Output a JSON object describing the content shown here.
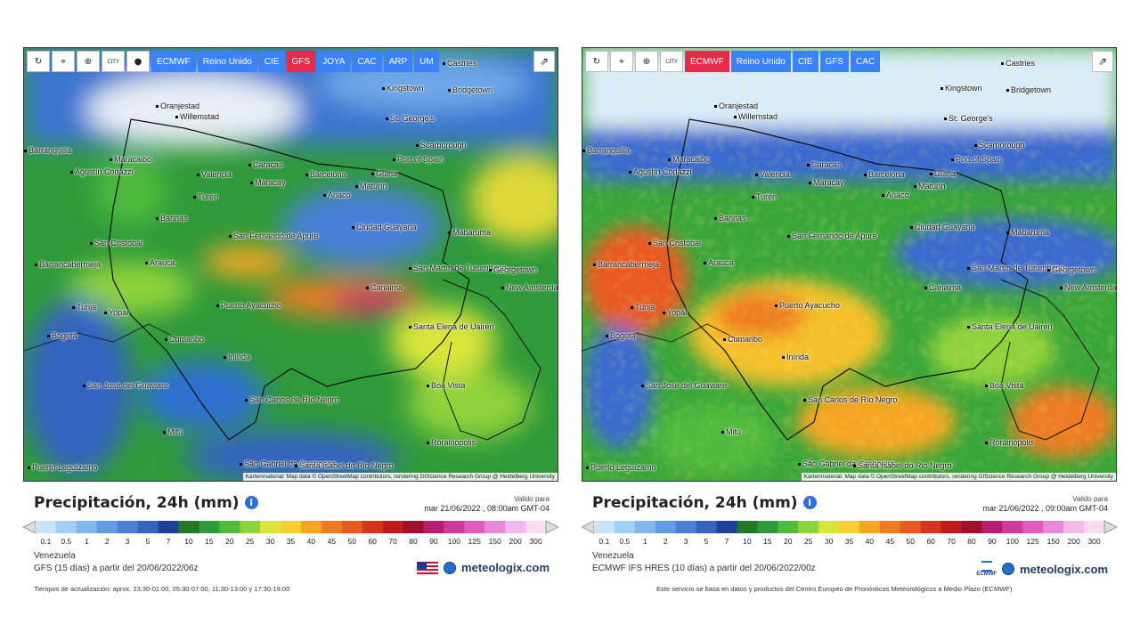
{
  "left": {
    "toolbar": {
      "tools": [
        {
          "name": "reload-icon",
          "glyph": "↻"
        },
        {
          "name": "location-icon",
          "glyph": "⌖"
        },
        {
          "name": "zoom-icon",
          "glyph": "⊕"
        },
        {
          "name": "city-toggle",
          "glyph": "CITY"
        },
        {
          "name": "dot-icon",
          "glyph": "●"
        }
      ],
      "models": [
        {
          "label": "ECMWF",
          "active": false
        },
        {
          "label": "Reino Unido",
          "active": false
        },
        {
          "label": "CIE",
          "active": false
        },
        {
          "label": "GFS",
          "active": true
        },
        {
          "label": "JOYA",
          "active": false
        },
        {
          "label": "CAC",
          "active": false
        },
        {
          "label": "ARP",
          "active": false
        },
        {
          "label": "UM",
          "active": false
        }
      ]
    },
    "title": "Precipitación, 24h (mm)",
    "valid_label": "Valido para",
    "valid_time": "mar 21/06/2022 , 08:00am GMT-04",
    "region": "Venezuela",
    "model_line": "GFS (15 días) a partir del 20/06/2022/06z",
    "footer": "Tiempos de actualización: aprox. 23:30-01:00, 05:30-07:00, 11:30-13:00 y 17:30-19:00",
    "brand": "meteologix.com"
  },
  "right": {
    "toolbar": {
      "tools": [
        {
          "name": "reload-icon",
          "glyph": "↻"
        },
        {
          "name": "location-icon",
          "glyph": "⌖"
        },
        {
          "name": "zoom-icon",
          "glyph": "⊕"
        },
        {
          "name": "city-toggle",
          "glyph": "CITY"
        }
      ],
      "models": [
        {
          "label": "ECMWF",
          "active": true
        },
        {
          "label": "Reino Unido",
          "active": false
        },
        {
          "label": "CIE",
          "active": false
        },
        {
          "label": "GFS",
          "active": false
        },
        {
          "label": "CAC",
          "active": false
        }
      ]
    },
    "title": "Precipitación, 24h (mm)",
    "valid_label": "Valido para",
    "valid_time": "mar 21/06/2022 , 09:00am GMT-04",
    "region": "Venezuela",
    "model_line": "ECMWF IFS HRES (10 días) a partir del 20/06/2022/00z",
    "footer": "Este servicio se basa en datos y productos del Centro Europeo de Pronósticos Meteorológicos a Medio Plazo (ECMWF)",
    "brand": "meteologix.com",
    "ecmwf_text": "ECMWF"
  },
  "attribution": "Kartenmaterial: Map data © OpenStreetMap contributors, rendering GIScience Research Group @ Heidelberg University",
  "legend": {
    "labels": [
      "0.1",
      "0.5",
      "1",
      "2",
      "3",
      "5",
      "7",
      "10",
      "15",
      "20",
      "25",
      "30",
      "35",
      "40",
      "45",
      "50",
      "60",
      "70",
      "80",
      "90",
      "100",
      "125",
      "150",
      "200",
      "300"
    ],
    "colors": [
      "#c8e4fb",
      "#a3cff5",
      "#7fb7ee",
      "#5f9ce6",
      "#4a7fd6",
      "#3563c0",
      "#203f9a",
      "#1e7a2a",
      "#2e9a3a",
      "#4fba3e",
      "#8fd23a",
      "#d9e53a",
      "#f7d030",
      "#f4a623",
      "#ee7b22",
      "#e85a20",
      "#d8331e",
      "#c01a1e",
      "#a00f2a",
      "#b81c6e",
      "#d03a9a",
      "#e05ac0",
      "#e888d8",
      "#f2b8ea",
      "#f8dcf4"
    ]
  },
  "cities": [
    {
      "name": "Oranjestad"
    },
    {
      "name": "Willemstad"
    },
    {
      "name": "Castries"
    },
    {
      "name": "Kingstown"
    },
    {
      "name": "Bridgetown"
    },
    {
      "name": "St. George's"
    },
    {
      "name": "Scarborough"
    },
    {
      "name": "Port of Spain"
    },
    {
      "name": "Barranquilla"
    },
    {
      "name": "Maracaibo"
    },
    {
      "name": "Agustín Codazzi"
    },
    {
      "name": "Valencia"
    },
    {
      "name": "Caracas"
    },
    {
      "name": "Maracay"
    },
    {
      "name": "Barcelona"
    },
    {
      "name": "Güiria"
    },
    {
      "name": "Maturín"
    },
    {
      "name": "Anaco"
    },
    {
      "name": "Turén"
    },
    {
      "name": "Barinas"
    },
    {
      "name": "Ciudad Guayana"
    },
    {
      "name": "Mabaruma"
    },
    {
      "name": "San Cristóbal"
    },
    {
      "name": "San Fernando de Apure"
    },
    {
      "name": "Barrancabermeja"
    },
    {
      "name": "Arauca"
    },
    {
      "name": "San Martín de Turumbang"
    },
    {
      "name": "Georgetown"
    },
    {
      "name": "New Amsterdam"
    },
    {
      "name": "Canaima"
    },
    {
      "name": "Tunja"
    },
    {
      "name": "Yopal"
    },
    {
      "name": "Puerto Ayacucho"
    },
    {
      "name": "Bogotá"
    },
    {
      "name": "Santa Elena de Uairén"
    },
    {
      "name": "Cumaribo"
    },
    {
      "name": "Inírida"
    },
    {
      "name": "San José del Guaviare"
    },
    {
      "name": "Boa Vista"
    },
    {
      "name": "San Carlos de Río Negro"
    },
    {
      "name": "Mitú"
    },
    {
      "name": "Rorainópolis"
    },
    {
      "name": "São Gabriel da Cachoeira"
    },
    {
      "name": "Santa Isabel do Rio Negro"
    },
    {
      "name": "Puerto Leguízamo"
    }
  ]
}
